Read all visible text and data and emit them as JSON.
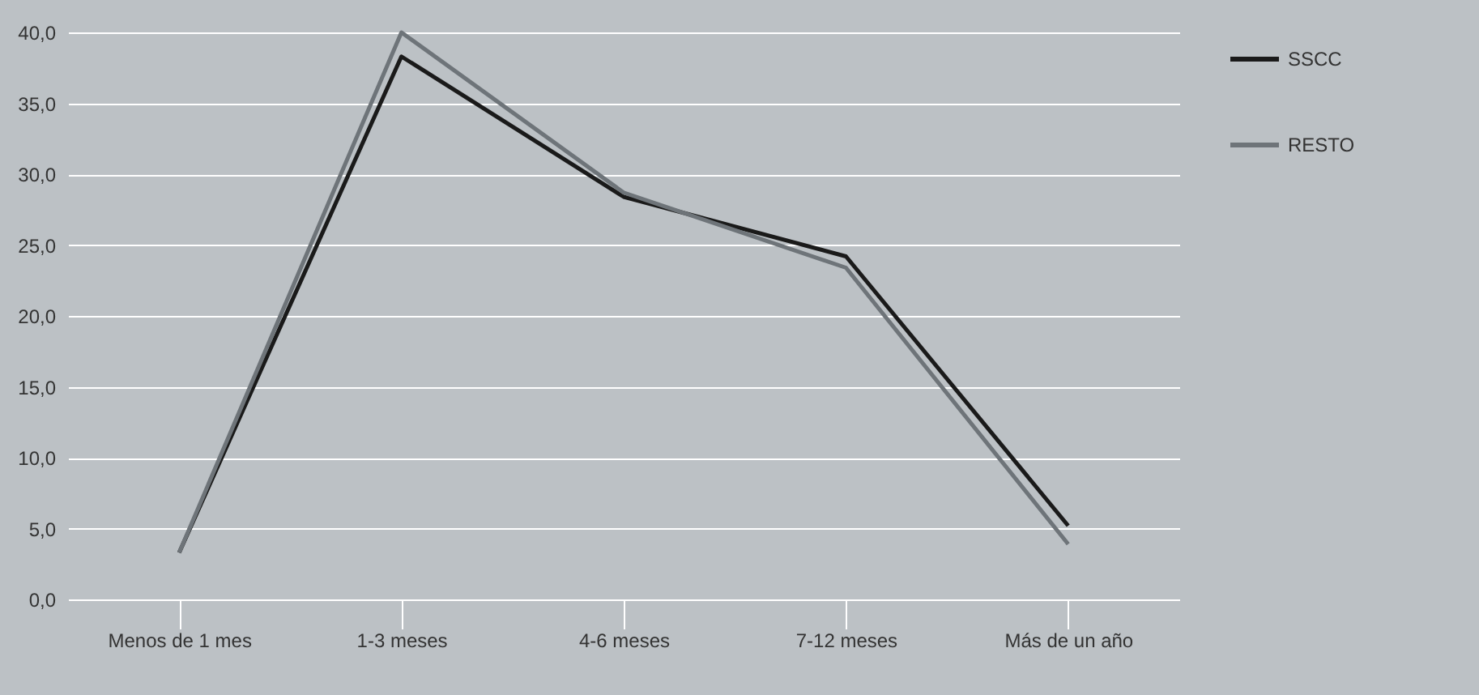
{
  "chart_data": {
    "type": "line",
    "categories": [
      "Menos de 1 mes",
      "1-3 meses",
      "4-6 meses",
      "7-12 meses",
      "Más de un año"
    ],
    "series": [
      {
        "name": "SSCC",
        "color": "#1a1a1a",
        "values": [
          3.3,
          38.3,
          28.4,
          24.2,
          5.2
        ]
      },
      {
        "name": "RESTO",
        "color": "#6e7479",
        "values": [
          3.3,
          40.0,
          28.7,
          23.4,
          3.9
        ]
      }
    ],
    "ylim": [
      0,
      40
    ],
    "yticks": [
      {
        "value": 0,
        "label": "0,0"
      },
      {
        "value": 5,
        "label": "5,0"
      },
      {
        "value": 10,
        "label": "10,0"
      },
      {
        "value": 15,
        "label": "15,0"
      },
      {
        "value": 20,
        "label": "20,0"
      },
      {
        "value": 25,
        "label": "25,0"
      },
      {
        "value": 30,
        "label": "30,0"
      },
      {
        "value": 35,
        "label": "35,0"
      },
      {
        "value": 40,
        "label": "40,0"
      }
    ],
    "grid": "y",
    "legend": "right",
    "marker": "none",
    "line_style": "solid"
  }
}
